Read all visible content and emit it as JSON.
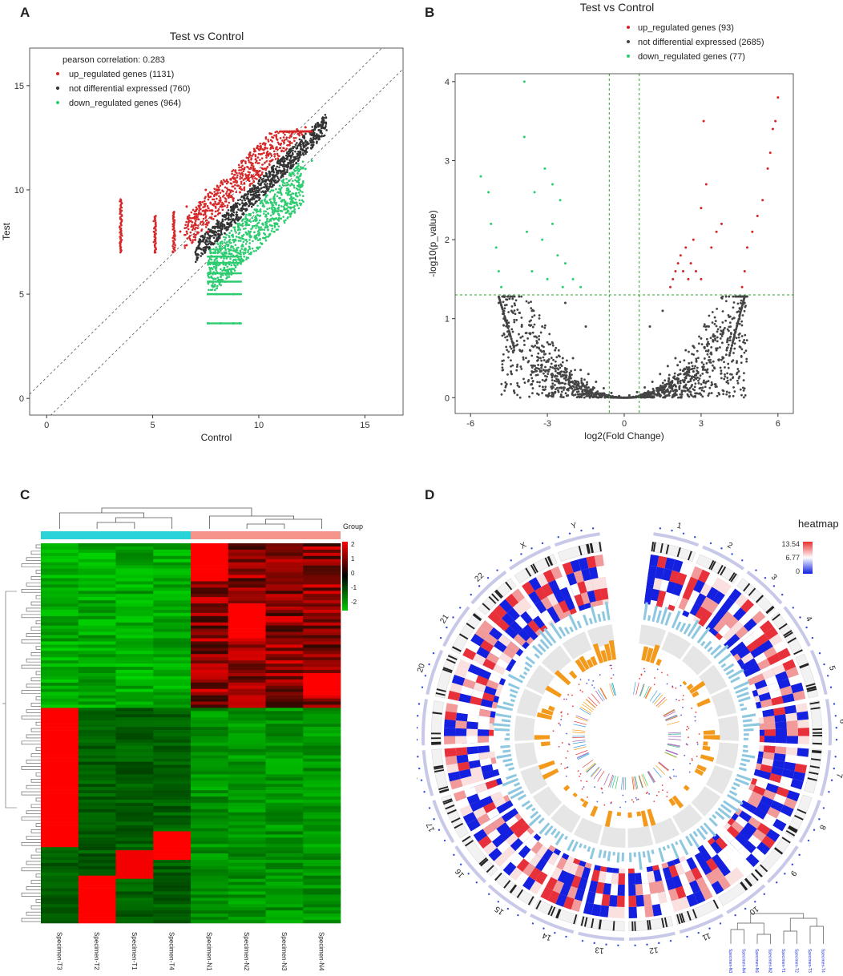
{
  "panels": {
    "a": {
      "letter": "A"
    },
    "b": {
      "letter": "B"
    },
    "c": {
      "letter": "C"
    },
    "d": {
      "letter": "D"
    }
  },
  "chart_data": [
    {
      "id": "A",
      "type": "scatter",
      "title": "Test vs Control",
      "xlabel": "Control",
      "ylabel": "Test",
      "xlim": [
        -0.8,
        16.8
      ],
      "ylim": [
        -0.8,
        16.8
      ],
      "xticks": [
        0,
        5,
        10,
        15
      ],
      "yticks": [
        0,
        5,
        10,
        15
      ],
      "annotation": "pearson correlation: 0.283",
      "legend_position": "top-left",
      "reference_lines": [
        {
          "type": "diagonal",
          "intercept": 1
        },
        {
          "type": "diagonal",
          "intercept": -1
        }
      ],
      "series": [
        {
          "name": "up_regulated genes (1131)",
          "color": "#d62728",
          "points": [
            [
              3.5,
              7.1
            ],
            [
              3.5,
              7.5
            ],
            [
              3.5,
              8.0
            ],
            [
              3.5,
              8.6
            ],
            [
              3.5,
              9.0
            ],
            [
              3.5,
              9.5
            ],
            [
              5.1,
              7.0
            ],
            [
              5.1,
              7.6
            ],
            [
              5.1,
              8.2
            ],
            [
              5.1,
              8.7
            ],
            [
              6.0,
              7.2
            ],
            [
              6.0,
              7.8
            ],
            [
              6.0,
              8.4
            ],
            [
              6.0,
              8.9
            ],
            [
              6.3,
              8.0
            ],
            [
              6.6,
              9.2
            ],
            [
              6.8,
              8.5
            ],
            [
              7.0,
              7.6
            ],
            [
              7.0,
              8.4
            ],
            [
              7.2,
              9.4
            ],
            [
              7.4,
              8.8
            ],
            [
              7.5,
              10.0
            ],
            [
              7.6,
              8.0
            ],
            [
              7.8,
              9.0
            ],
            [
              8.0,
              10.0
            ],
            [
              8.2,
              9.5
            ],
            [
              8.4,
              10.4
            ],
            [
              8.6,
              9.8
            ],
            [
              8.8,
              10.6
            ],
            [
              9.0,
              10.2
            ],
            [
              9.2,
              10.8
            ],
            [
              9.5,
              10.5
            ],
            [
              9.8,
              11.0
            ],
            [
              10.2,
              11.0
            ],
            [
              10.6,
              11.4
            ],
            [
              11.0,
              12.0
            ],
            [
              11.5,
              12.6
            ],
            [
              11.8,
              12.9
            ],
            [
              12.2,
              13.0
            ]
          ]
        },
        {
          "name": "not differential expressed (760)",
          "color": "#333333",
          "points": [
            [
              7.2,
              7.4
            ],
            [
              7.6,
              7.9
            ],
            [
              7.9,
              8.0
            ],
            [
              8.1,
              8.4
            ],
            [
              8.3,
              8.5
            ],
            [
              8.5,
              8.9
            ],
            [
              8.7,
              9.0
            ],
            [
              8.9,
              9.2
            ],
            [
              9.1,
              9.3
            ],
            [
              9.3,
              9.6
            ],
            [
              9.5,
              9.8
            ],
            [
              9.7,
              10.0
            ],
            [
              9.9,
              10.1
            ],
            [
              10.2,
              10.4
            ],
            [
              10.5,
              10.8
            ],
            [
              10.8,
              11.0
            ],
            [
              11.1,
              11.4
            ],
            [
              11.4,
              11.7
            ],
            [
              11.8,
              12.0
            ],
            [
              12.2,
              12.3
            ],
            [
              12.6,
              12.7
            ],
            [
              13.0,
              13.1
            ]
          ]
        },
        {
          "name": "down_regulated genes (964)",
          "color": "#2ecc71",
          "points": [
            [
              7.6,
              3.6
            ],
            [
              8.2,
              3.6
            ],
            [
              8.8,
              3.6
            ],
            [
              9.1,
              3.6
            ],
            [
              7.6,
              5.0
            ],
            [
              8.0,
              5.0
            ],
            [
              8.8,
              5.0
            ],
            [
              7.7,
              5.6
            ],
            [
              8.4,
              5.6
            ],
            [
              7.7,
              6.0
            ],
            [
              8.5,
              6.0
            ],
            [
              7.8,
              6.5
            ],
            [
              8.6,
              6.5
            ],
            [
              8.0,
              6.8
            ],
            [
              9.0,
              6.8
            ],
            [
              8.2,
              7.2
            ],
            [
              9.2,
              7.3
            ],
            [
              8.8,
              7.6
            ],
            [
              9.6,
              7.8
            ],
            [
              10.0,
              8.2
            ],
            [
              10.4,
              8.6
            ],
            [
              10.8,
              9.0
            ],
            [
              11.0,
              9.6
            ],
            [
              11.4,
              9.8
            ],
            [
              11.8,
              10.4
            ],
            [
              12.2,
              11.0
            ],
            [
              12.5,
              11.4
            ]
          ]
        }
      ]
    },
    {
      "id": "B",
      "type": "scatter",
      "title": "Test vs Control",
      "xlabel": "log2(Fold Change)",
      "ylabel": "-log10(p_value)",
      "xlim": [
        -6.6,
        6.6
      ],
      "ylim": [
        -0.2,
        4.1
      ],
      "xticks": [
        -6,
        -3,
        0,
        3,
        6
      ],
      "yticks": [
        0,
        1,
        2,
        3,
        4
      ],
      "legend_position": "top-right",
      "thresholds": {
        "fold_change_lines": [
          -0.585,
          0.585
        ],
        "p_value_line": 1.301
      },
      "series": [
        {
          "name": "up_regulated genes (93)",
          "color": "#d62728",
          "points": [
            [
              1.8,
              1.4
            ],
            [
              1.9,
              1.5
            ],
            [
              2.0,
              1.6
            ],
            [
              2.1,
              1.7
            ],
            [
              2.2,
              1.8
            ],
            [
              2.3,
              1.6
            ],
            [
              2.4,
              1.9
            ],
            [
              2.5,
              1.5
            ],
            [
              2.6,
              1.7
            ],
            [
              2.7,
              2.0
            ],
            [
              2.8,
              1.6
            ],
            [
              3.0,
              1.5
            ],
            [
              3.1,
              3.5
            ],
            [
              3.2,
              2.7
            ],
            [
              3.0,
              2.4
            ],
            [
              3.4,
              1.9
            ],
            [
              3.6,
              2.1
            ],
            [
              3.8,
              2.2
            ],
            [
              4.6,
              1.4
            ],
            [
              4.7,
              1.6
            ],
            [
              4.8,
              1.9
            ],
            [
              5.0,
              2.1
            ],
            [
              5.2,
              2.3
            ],
            [
              5.4,
              2.5
            ],
            [
              5.6,
              2.9
            ],
            [
              5.7,
              3.1
            ],
            [
              5.8,
              3.4
            ],
            [
              5.9,
              3.5
            ],
            [
              6.0,
              3.8
            ]
          ]
        },
        {
          "name": "not differential expressed (2685)",
          "color": "#444444",
          "points": [
            [
              -4.9,
              1.2
            ],
            [
              -4.7,
              1.0
            ],
            [
              -4.5,
              0.8
            ],
            [
              -4.3,
              0.6
            ],
            [
              -4.0,
              0.9
            ],
            [
              -3.6,
              1.1
            ],
            [
              -3.2,
              0.9
            ],
            [
              -3.0,
              0.7
            ],
            [
              -2.7,
              0.6
            ],
            [
              -2.4,
              0.5
            ],
            [
              -2.0,
              0.5
            ],
            [
              -1.7,
              0.35
            ],
            [
              -1.4,
              0.3
            ],
            [
              -1.1,
              0.2
            ],
            [
              -0.8,
              0.12
            ],
            [
              -0.5,
              0.06
            ],
            [
              -0.2,
              0.02
            ],
            [
              0.0,
              0.0
            ],
            [
              0.2,
              0.03
            ],
            [
              0.5,
              0.07
            ],
            [
              0.8,
              0.13
            ],
            [
              1.1,
              0.2
            ],
            [
              1.4,
              0.3
            ],
            [
              1.7,
              0.4
            ],
            [
              2.0,
              0.5
            ],
            [
              2.4,
              0.6
            ],
            [
              2.7,
              0.65
            ],
            [
              3.0,
              0.75
            ],
            [
              3.3,
              0.9
            ],
            [
              3.6,
              0.6
            ],
            [
              4.0,
              0.6
            ],
            [
              4.3,
              0.8
            ],
            [
              4.5,
              1.0
            ],
            [
              4.7,
              1.2
            ],
            [
              1.0,
              0.9
            ],
            [
              1.5,
              1.1
            ],
            [
              -1.5,
              0.9
            ],
            [
              -2.3,
              1.2
            ]
          ]
        },
        {
          "name": "down_regulated genes (77)",
          "color": "#2ecc71",
          "points": [
            [
              -5.6,
              2.8
            ],
            [
              -5.3,
              2.6
            ],
            [
              -5.2,
              2.2
            ],
            [
              -5.0,
              1.9
            ],
            [
              -4.9,
              1.6
            ],
            [
              -4.8,
              1.4
            ],
            [
              -3.9,
              4.0
            ],
            [
              -3.9,
              3.3
            ],
            [
              -3.5,
              2.6
            ],
            [
              -3.1,
              2.9
            ],
            [
              -2.8,
              2.7
            ],
            [
              -2.5,
              2.5
            ],
            [
              -3.2,
              2.0
            ],
            [
              -3.6,
              1.6
            ],
            [
              -3.0,
              1.5
            ],
            [
              -2.6,
              1.8
            ],
            [
              -2.3,
              1.7
            ],
            [
              -2.0,
              1.5
            ],
            [
              -2.8,
              2.2
            ],
            [
              -3.8,
              2.1
            ],
            [
              -2.4,
              1.4
            ],
            [
              -1.7,
              1.4
            ]
          ]
        }
      ]
    },
    {
      "id": "C",
      "type": "heatmap",
      "columns": [
        "Specimen-T3",
        "Specimen-T2",
        "Specimen-T1",
        "Specimen-T4",
        "Specimen-N1",
        "Specimen-N2",
        "Specimen-N3",
        "Specimen-N4"
      ],
      "groups": [
        {
          "label": "T",
          "color": "#29d3d8",
          "span": [
            0,
            3
          ]
        },
        {
          "label": "N",
          "color": "#f4948a",
          "span": [
            4,
            7
          ]
        }
      ],
      "legend_title": "Group",
      "colorbar": {
        "ticks": [
          2,
          1,
          0,
          -1,
          -2
        ],
        "low_color": "#00cc00",
        "mid_color": "#000000",
        "high_color": "#ff0000"
      }
    },
    {
      "id": "D",
      "type": "circos",
      "chromosomes": [
        "1",
        "2",
        "3",
        "4",
        "5",
        "6",
        "7",
        "8",
        "9",
        "10",
        "11",
        "12",
        "13",
        "14",
        "15",
        "16",
        "17",
        "18",
        "19",
        "20",
        "21",
        "22",
        "X",
        "Y"
      ],
      "legend_title": "heatmap",
      "colorbar_ticks": [
        "13.54",
        "6.77",
        "0"
      ],
      "dendrogram_labels": [
        "Specimen-N3",
        "Specimen-N4",
        "Specimen-N1",
        "Specimen-N2",
        "Specimen-T1",
        "Specimen-T2",
        "Specimen-T3",
        "Specimen-T4"
      ]
    }
  ]
}
